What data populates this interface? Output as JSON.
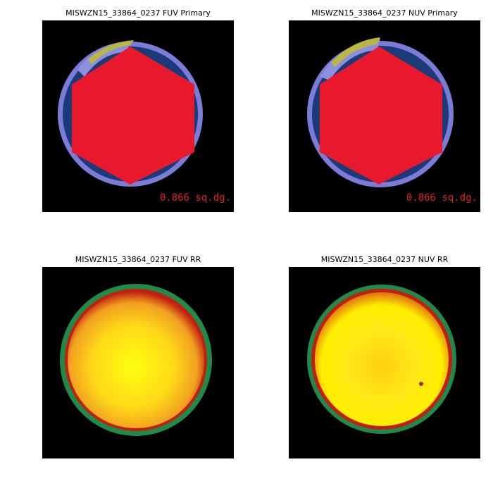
{
  "panels": [
    {
      "title": "MISWZN15_33864_0237 FUV Primary",
      "area_label": "0.866 sq.dg."
    },
    {
      "title": "MISWZN15_33864_0237 NUV Primary",
      "area_label": "0.866 sq.dg."
    },
    {
      "title": "MISWZN15_33864_0237 FUV RR"
    },
    {
      "title": "MISWZN15_33864_0237 NUV RR"
    }
  ],
  "colors": {
    "background": "#000000",
    "coverage_ring": "#7b7bd8",
    "coverage_inner": "#1a3a78",
    "hexagon": "#e8192c",
    "overlap": "#b8b840",
    "rr_edge_green": "#1f8a4a",
    "rr_edge_red": "#c02010",
    "rr_center": "#ffee00"
  }
}
